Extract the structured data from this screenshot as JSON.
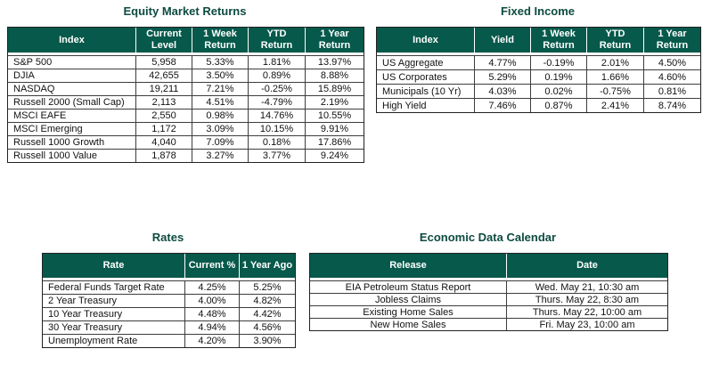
{
  "accent": {
    "header_bg": "#06594B",
    "title_color": "#0d4b41",
    "grid_color": "#3d3d3d",
    "header_text": "#ffffff"
  },
  "tables": [
    {
      "id": "equity",
      "title": "Equity Market Returns",
      "headers": [
        "Index",
        "Current Level",
        "1 Week Return",
        "YTD Return",
        "1 Year Return"
      ],
      "rows": [
        [
          "S&P 500",
          "5,958",
          "5.33%",
          "1.81%",
          "13.97%"
        ],
        [
          "DJIA",
          "42,655",
          "3.50%",
          "0.89%",
          "8.88%"
        ],
        [
          "NASDAQ",
          "19,211",
          "7.21%",
          "-0.25%",
          "15.89%"
        ],
        [
          "Russell 2000 (Small Cap)",
          "2,113",
          "4.51%",
          "-4.79%",
          "2.19%"
        ],
        [
          "MSCI EAFE",
          "2,550",
          "0.98%",
          "14.76%",
          "10.55%"
        ],
        [
          "MSCI Emerging",
          "1,172",
          "3.09%",
          "10.15%",
          "9.91%"
        ],
        [
          "Russell 1000 Growth",
          "4,040",
          "7.09%",
          "0.18%",
          "17.86%"
        ],
        [
          "Russell 1000 Value",
          "1,878",
          "3.27%",
          "3.77%",
          "9.24%"
        ]
      ]
    },
    {
      "id": "fixed",
      "title": "Fixed Income",
      "headers": [
        "Index",
        "Yield",
        "1 Week Return",
        "YTD Return",
        "1 Year Return"
      ],
      "rows": [
        [
          "US Aggregate",
          "4.77%",
          "-0.19%",
          "2.01%",
          "4.50%"
        ],
        [
          "US Corporates",
          "5.29%",
          "0.19%",
          "1.66%",
          "4.60%"
        ],
        [
          "Municipals (10 Yr)",
          "4.03%",
          "0.02%",
          "-0.75%",
          "0.81%"
        ],
        [
          "High Yield",
          "7.46%",
          "0.87%",
          "2.41%",
          "8.74%"
        ]
      ]
    },
    {
      "id": "rates",
      "title": "Rates",
      "headers": [
        "Rate",
        "Current %",
        "1 Year Ago"
      ],
      "rows": [
        [
          "Federal Funds Target Rate",
          "4.25%",
          "5.25%"
        ],
        [
          "2 Year Treasury",
          "4.00%",
          "4.82%"
        ],
        [
          "10 Year Treasury",
          "4.48%",
          "4.42%"
        ],
        [
          "30 Year Treasury",
          "4.94%",
          "4.56%"
        ],
        [
          "Unemployment Rate",
          "4.20%",
          "3.90%"
        ]
      ]
    },
    {
      "id": "econ",
      "title": "Economic Data Calendar",
      "headers": [
        "Release",
        "Date"
      ],
      "rows": [
        [
          "EIA Petroleum Status Report",
          "Wed. May 21, 10:30 am"
        ],
        [
          "Jobless Claims",
          "Thurs. May 22, 8:30 am"
        ],
        [
          "Existing Home Sales",
          "Thurs. May 22, 10:00 am"
        ],
        [
          "New Home Sales",
          "Fri. May 23, 10:00 am"
        ]
      ]
    }
  ]
}
